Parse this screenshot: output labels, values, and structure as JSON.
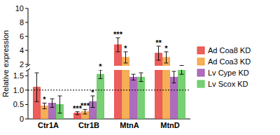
{
  "chart_data": {
    "type": "bar",
    "y_label": "Relative expression",
    "categories": [
      "Ctr1A",
      "Ctr1B",
      "MtnA",
      "MtnD"
    ],
    "ylim": [
      0,
      10
    ],
    "axis_break": [
      1.7,
      1.8
    ],
    "yticks": [
      0,
      0.5,
      {
        "value": 1,
        "label": "1.0"
      },
      1.5,
      2,
      4,
      6,
      8,
      10
    ],
    "ref_line": 1,
    "legend": "right",
    "series": [
      {
        "name": "Ad Coa8 KD",
        "color": "#e8423f",
        "values": [
          1.1,
          0.2,
          4.8,
          3.6
        ],
        "errors": [
          0.5,
          0.05,
          1.0,
          1.0
        ],
        "significance": [
          null,
          "***",
          "***",
          "**"
        ]
      },
      {
        "name": "Ad Coa3 KD",
        "color": "#f5a03a",
        "values": [
          0.45,
          0.25,
          3.0,
          3.0
        ],
        "errors": [
          0.1,
          0.08,
          0.8,
          0.8
        ],
        "significance": [
          "*",
          "***",
          "*",
          "*"
        ]
      },
      {
        "name": "Lv Cype KD",
        "color": "#a054b0",
        "values": [
          0.55,
          0.6,
          1.45,
          1.45
        ],
        "errors": [
          0.15,
          0.2,
          0.1,
          0.2
        ],
        "significance": [
          null,
          "*",
          null,
          null
        ]
      },
      {
        "name": "Lv Scox KD",
        "color": "#5fc85a",
        "values": [
          0.5,
          1.55,
          1.45,
          1.7
        ],
        "errors": [
          0.3,
          0.15,
          0.15,
          0.15
        ],
        "significance": [
          null,
          "*",
          null,
          null
        ]
      }
    ]
  }
}
